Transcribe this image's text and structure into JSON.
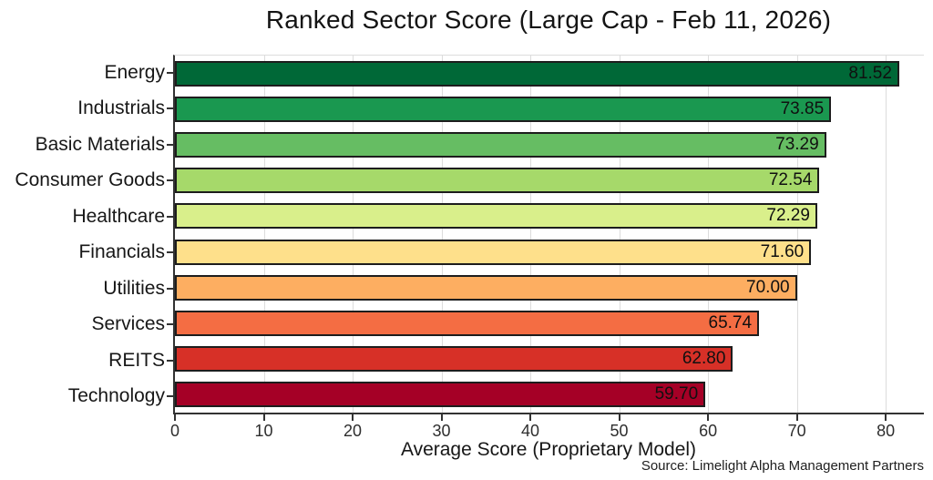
{
  "title": "Ranked Sector Score (Large Cap - Feb 11, 2026)",
  "source": "Source: Limelight Alpha Management Partners",
  "chart_data": {
    "type": "bar",
    "orientation": "horizontal",
    "title": "Ranked Sector Score (Large Cap - Feb 11, 2026)",
    "xlabel": "Average Score (Proprietary Model)",
    "ylabel": "",
    "categories": [
      "Energy",
      "Industrials",
      "Basic Materials",
      "Consumer Goods",
      "Healthcare",
      "Financials",
      "Utilities",
      "Services",
      "REITS",
      "Technology"
    ],
    "values": [
      81.52,
      73.85,
      73.29,
      72.54,
      72.29,
      71.6,
      70.0,
      65.74,
      62.8,
      59.7
    ],
    "value_labels": [
      "81.52",
      "73.85",
      "73.29",
      "72.54",
      "72.29",
      "71.60",
      "70.00",
      "65.74",
      "62.80",
      "59.70"
    ],
    "bar_colors": [
      "#006837",
      "#1a9850",
      "#66bd63",
      "#a6d96a",
      "#d9ef8b",
      "#fee08b",
      "#fdae61",
      "#f46d43",
      "#d73027",
      "#a50026"
    ],
    "bar_edge_color": "#1d1d1d",
    "x_ticks": [
      0,
      10,
      20,
      30,
      40,
      50,
      60,
      70,
      80
    ],
    "xlim": [
      0,
      84.5
    ],
    "grid": "vertical-gridlines-behind-bars",
    "gridline_color": "#dcdcdc",
    "legend": "none"
  }
}
